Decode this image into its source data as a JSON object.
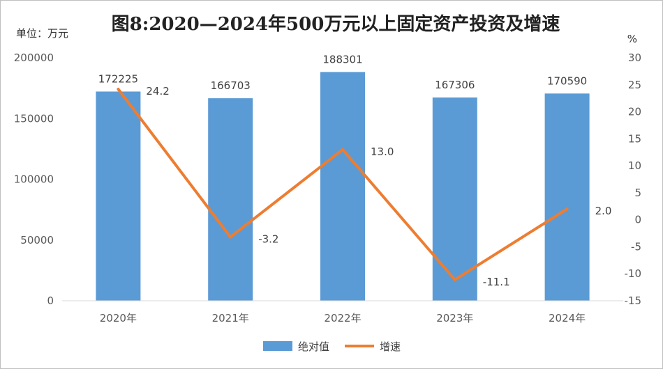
{
  "chart_data": {
    "type": "bar",
    "title": "图8:2020—2024年500万元以上固定资产投资及增速",
    "y_unit_left": "单位：万元",
    "y_unit_right": "%",
    "categories": [
      "2020年",
      "2021年",
      "2022年",
      "2023年",
      "2024年"
    ],
    "series": [
      {
        "name": "绝对值",
        "type": "bar",
        "axis": "left",
        "color": "#5B9BD5",
        "values": [
          172225,
          166703,
          188301,
          167306,
          170590
        ],
        "labels": [
          "172225",
          "166703",
          "188301",
          "167306",
          "170590"
        ]
      },
      {
        "name": "增速",
        "type": "line",
        "axis": "right",
        "color": "#ED7D31",
        "values": [
          24.2,
          -3.2,
          13.0,
          -11.1,
          2.0
        ],
        "labels": [
          "24.2",
          "-3.2",
          "13.0",
          "-11.1",
          "2.0"
        ]
      }
    ],
    "y_left": {
      "min": 0,
      "max": 200000,
      "ticks": [
        "0",
        "50000",
        "100000",
        "150000",
        "200000"
      ]
    },
    "y_right": {
      "min": -15,
      "max": 30,
      "ticks": [
        "-15",
        "-10",
        "-5",
        "0",
        "5",
        "10",
        "15",
        "20",
        "25",
        "30"
      ]
    },
    "grid": false,
    "legend": "bottom"
  }
}
